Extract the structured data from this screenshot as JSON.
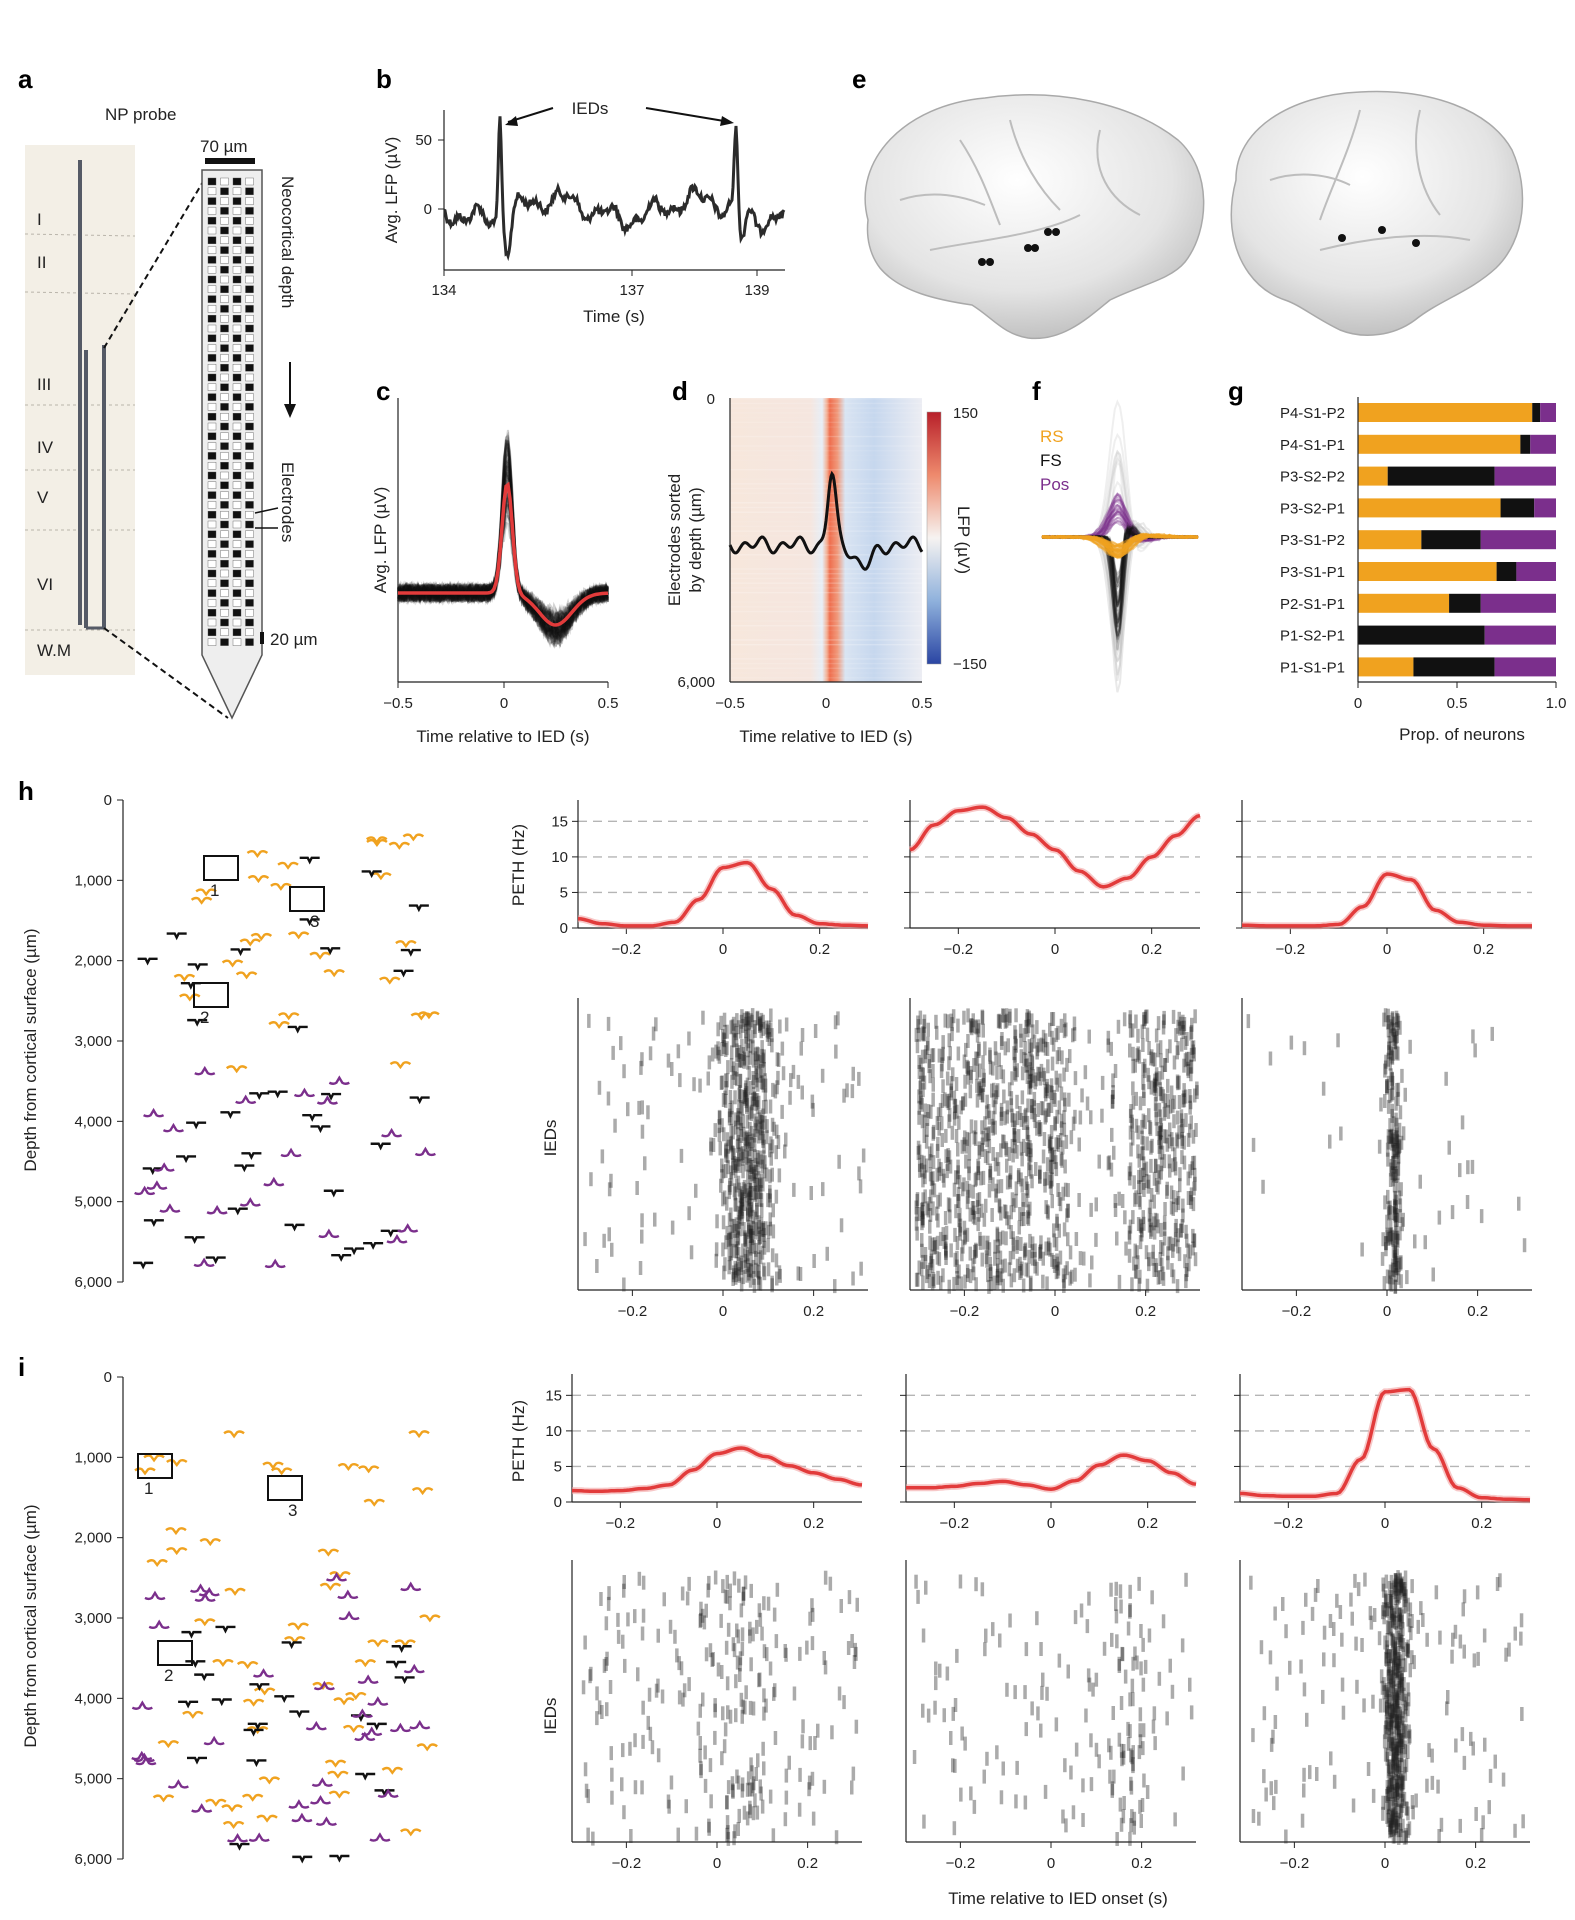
{
  "panel_labels": [
    "a",
    "b",
    "c",
    "d",
    "e",
    "f",
    "g",
    "h",
    "i"
  ],
  "colors": {
    "RS": "#f0a21f",
    "FS": "#111111",
    "Pos": "#7b2f8c",
    "peth": "#e23b3b",
    "trace": "#2b2b2b",
    "grid": "#b5b5b5",
    "cmap_hot": "#cc2a2a",
    "cmap_cold": "#2f50a8"
  },
  "panel_a": {
    "probe_title": "NP probe",
    "scale_width": "70 µm",
    "scale_pitch": "20 µm",
    "depth_label": "Neocortical depth",
    "electrodes_label": "Electrodes",
    "layers": [
      "I",
      "II",
      "III",
      "IV",
      "V",
      "VI",
      "W.M"
    ]
  },
  "panel_b": {
    "ylabel": "Avg. LFP (µV)",
    "xlabel": "Time (s)",
    "annotation": "IEDs",
    "xticks": [
      "134",
      "137",
      "139"
    ],
    "yticks": [
      "50",
      "0"
    ]
  },
  "panel_c": {
    "ylabel": "Avg. LFP (µV)",
    "xlabel": "Time relative to IED (s)",
    "xticks": [
      "−0.5",
      "0",
      "0.5"
    ]
  },
  "panel_d": {
    "ylabel": "Electrodes sorted by depth (µm)",
    "xlabel": "Time relative to IED (s)",
    "xticks": [
      "−0.5",
      "0",
      "0.5"
    ],
    "yticks": [
      "0",
      "6,000"
    ],
    "colorbar_label": "LFP (µV)",
    "colorbar_ticks": [
      "150",
      "−150"
    ]
  },
  "panel_f": {
    "legend": [
      "RS",
      "FS",
      "Pos"
    ]
  },
  "chart_data": [
    {
      "type": "bar",
      "panel": "g",
      "stacked": true,
      "orientation": "horizontal",
      "categories": [
        "P4-S1-P2",
        "P4-S1-P1",
        "P3-S2-P2",
        "P3-S2-P1",
        "P3-S1-P2",
        "P3-S1-P1",
        "P2-S1-P1",
        "P1-S2-P1",
        "P1-S1-P1"
      ],
      "series": [
        {
          "name": "RS",
          "values": [
            0.88,
            0.82,
            0.15,
            0.72,
            0.32,
            0.7,
            0.46,
            0.0,
            0.28
          ]
        },
        {
          "name": "FS",
          "values": [
            0.04,
            0.05,
            0.54,
            0.17,
            0.3,
            0.1,
            0.16,
            0.64,
            0.41
          ]
        },
        {
          "name": "Pos",
          "values": [
            0.08,
            0.13,
            0.31,
            0.11,
            0.38,
            0.2,
            0.38,
            0.36,
            0.31
          ]
        }
      ],
      "xlabel": "Prop. of neurons",
      "xticks": [
        "0",
        "0.5",
        "1.0"
      ],
      "xlim": [
        0,
        1
      ]
    },
    {
      "type": "line",
      "panel": "h",
      "ylabel": "PETH (Hz)",
      "xticks": [
        "−0.2",
        "0",
        "0.2"
      ],
      "yticks": [
        "0",
        "5",
        "10",
        "15"
      ],
      "xlim": [
        -0.3,
        0.3
      ],
      "ylim": [
        0,
        18
      ],
      "grid_y": [
        5,
        10,
        15
      ],
      "x": [
        -0.3,
        -0.25,
        -0.2,
        -0.15,
        -0.1,
        -0.05,
        0.0,
        0.05,
        0.1,
        0.15,
        0.2,
        0.25,
        0.3
      ],
      "series": [
        {
          "values": [
            1.3,
            0.6,
            0.3,
            0.3,
            0.8,
            4.0,
            8.5,
            9.2,
            5.5,
            1.8,
            0.6,
            0.4,
            0.3
          ]
        },
        {
          "values": [
            11.0,
            14.5,
            16.5,
            17.0,
            15.5,
            13.2,
            11.0,
            8.0,
            5.8,
            7.0,
            10.0,
            13.0,
            15.8
          ]
        },
        {
          "values": [
            0.4,
            0.3,
            0.3,
            0.3,
            0.5,
            3.0,
            7.6,
            6.8,
            2.5,
            0.8,
            0.4,
            0.3,
            0.3
          ]
        }
      ]
    },
    {
      "type": "line",
      "panel": "i",
      "ylabel": "PETH (Hz)",
      "xticks": [
        "−0.2",
        "0",
        "0.2"
      ],
      "yticks": [
        "0",
        "5",
        "10",
        "15"
      ],
      "xlim": [
        -0.3,
        0.3
      ],
      "ylim": [
        0,
        18
      ],
      "grid_y": [
        5,
        10,
        15
      ],
      "x": [
        -0.3,
        -0.25,
        -0.2,
        -0.15,
        -0.1,
        -0.05,
        0.0,
        0.05,
        0.1,
        0.15,
        0.2,
        0.25,
        0.3
      ],
      "series": [
        {
          "values": [
            1.6,
            1.5,
            1.6,
            1.9,
            2.4,
            4.5,
            6.8,
            7.6,
            6.4,
            5.1,
            4.1,
            3.2,
            2.4
          ]
        },
        {
          "values": [
            2.0,
            2.0,
            2.2,
            2.6,
            2.9,
            2.4,
            1.8,
            3.0,
            5.2,
            6.6,
            5.8,
            4.1,
            2.5
          ]
        },
        {
          "values": [
            1.2,
            0.9,
            0.8,
            0.8,
            1.2,
            6.0,
            15.5,
            15.8,
            7.5,
            2.0,
            0.6,
            0.4,
            0.3
          ]
        }
      ]
    }
  ],
  "panel_h": {
    "depth_ylabel": "Depth from cortical surface (µm)",
    "depth_ticks": [
      "0",
      "1,000",
      "2,000",
      "3,000",
      "4,000",
      "5,000",
      "6,000"
    ],
    "unit_labels": [
      "1",
      "2",
      "3"
    ],
    "raster_ylabel": "IEDs",
    "raster_xticks": [
      "−0.2",
      "0",
      "0.2"
    ]
  },
  "panel_i": {
    "depth_ylabel": "Depth from cortical surface (µm)",
    "depth_ticks": [
      "0",
      "1,000",
      "2,000",
      "3,000",
      "4,000",
      "5,000",
      "6,000"
    ],
    "unit_labels": [
      "1",
      "2",
      "3"
    ],
    "raster_ylabel": "IEDs",
    "raster_xticks": [
      "−0.2",
      "0",
      "0.2"
    ],
    "xlabel": "Time relative to IED onset (s)"
  }
}
